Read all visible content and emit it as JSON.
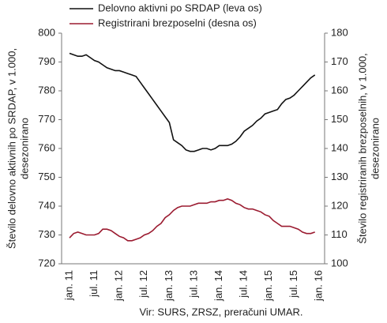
{
  "chart_data": {
    "type": "line",
    "categories": [
      "jan. 11",
      null,
      null,
      null,
      null,
      null,
      "jul. 11",
      null,
      null,
      null,
      null,
      null,
      "jan. 12",
      null,
      null,
      null,
      null,
      null,
      "jul. 12",
      null,
      null,
      null,
      null,
      null,
      "jan. 13",
      null,
      null,
      null,
      null,
      null,
      "jul. 13",
      null,
      null,
      null,
      null,
      null,
      "jan. 14",
      null,
      null,
      null,
      null,
      null,
      "jul. 14",
      null,
      null,
      null,
      null,
      null,
      "jan. 15",
      null,
      null,
      null,
      null,
      null,
      "jul. 15",
      null,
      null,
      null,
      null,
      null,
      "jan. 16"
    ],
    "series": [
      {
        "name": "Delovno aktivni po SRDAP (leva os)",
        "color": "#111111",
        "axis": "y",
        "values": [
          793,
          792.5,
          792,
          792,
          792.5,
          791.5,
          790.5,
          790,
          789,
          788,
          787.5,
          787,
          787,
          786.5,
          786,
          785.5,
          785,
          783,
          781,
          779,
          777,
          775,
          773,
          771,
          769,
          763,
          762,
          761,
          759.5,
          759,
          759,
          759.5,
          760,
          760,
          759.5,
          760,
          761,
          761,
          761,
          761.5,
          762.5,
          764,
          766,
          767,
          768,
          769.5,
          770.5,
          772,
          772.5,
          773,
          773.5,
          775.5,
          777,
          777.5,
          778.5,
          780,
          781.5,
          783,
          784.5,
          785.5,
          null
        ]
      },
      {
        "name": "Registrirani brezposelni (desna os)",
        "color": "#9b1b30",
        "axis": "y2",
        "values": [
          109,
          110.5,
          111,
          110.5,
          110,
          110,
          110,
          110.5,
          112,
          112,
          111.5,
          110.5,
          109.5,
          109,
          108,
          108,
          108.5,
          109,
          110,
          110.5,
          111.5,
          113,
          114,
          116,
          117,
          118.5,
          119.5,
          120,
          120,
          120,
          120.5,
          121,
          121,
          121,
          121.5,
          121.5,
          122,
          122,
          122.5,
          122,
          121,
          120.5,
          119.5,
          119,
          119,
          118.5,
          118,
          117,
          116.5,
          115,
          114,
          113,
          113,
          113,
          112.5,
          112,
          111,
          110.5,
          110.5,
          111,
          null
        ]
      }
    ],
    "ylim": [
      720,
      800
    ],
    "yticks": [
      720,
      730,
      740,
      750,
      760,
      770,
      780,
      790,
      800
    ],
    "y2lim": [
      100,
      180
    ],
    "y2ticks": [
      100,
      110,
      120,
      130,
      140,
      150,
      160,
      170,
      180
    ],
    "ylabel": [
      "Število delovno aktivnih po SRDAP, v 1.000,",
      "desezonirano"
    ],
    "y2label": [
      "Število registriranih brezposelnih, v 1.000,",
      "desezonirano"
    ],
    "source": "Vir: SURS, ZRSZ, preračuni UMAR."
  }
}
